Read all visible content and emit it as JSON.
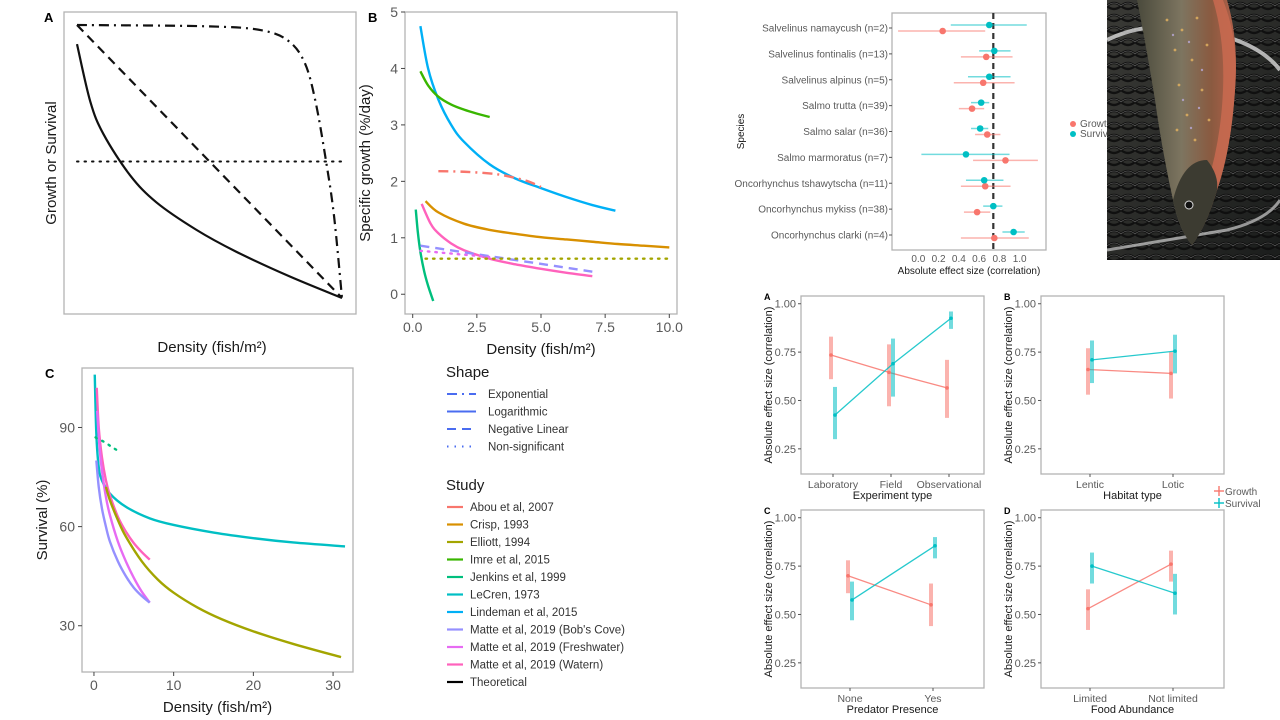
{
  "chart_data": [
    {
      "id": "A",
      "type": "line",
      "panel_label": "A",
      "title": "",
      "xlabel": "Density (fish/m²)",
      "ylabel": "Growth or Survival",
      "xlim": [
        0,
        1
      ],
      "ylim": [
        0,
        1
      ],
      "ticks_shown": false,
      "grid": false,
      "series": [
        {
          "name": "Logarithmic",
          "dash": "solid",
          "x": [
            0,
            0.05,
            0.1,
            0.2,
            0.3,
            0.45,
            0.6,
            0.8,
            1.0
          ],
          "y": [
            0.93,
            0.72,
            0.6,
            0.45,
            0.35,
            0.25,
            0.17,
            0.08,
            0.0
          ]
        },
        {
          "name": "Negative Linear",
          "dash": "dashed",
          "x": [
            0,
            1
          ],
          "y": [
            1.0,
            0.0
          ]
        },
        {
          "name": "Exponential",
          "dash": "dotdash",
          "x": [
            0,
            0.5,
            0.7,
            0.8,
            0.86,
            0.9,
            0.94,
            0.97,
            1.0
          ],
          "y": [
            1.0,
            0.995,
            0.98,
            0.94,
            0.86,
            0.72,
            0.5,
            0.3,
            0.0
          ]
        },
        {
          "name": "Non-significant",
          "dash": "dotted",
          "x": [
            0,
            1
          ],
          "y": [
            0.5,
            0.5
          ]
        }
      ]
    },
    {
      "id": "B",
      "type": "line",
      "panel_label": "B",
      "title": "",
      "xlabel": "Density (fish/m²)",
      "ylabel": "Specific growth (%/day)",
      "xlim": [
        -0.3,
        10.3
      ],
      "ylim": [
        -0.35,
        5
      ],
      "xticks": [
        "0.0",
        "2.5",
        "5.0",
        "7.5",
        "10.0"
      ],
      "xtick_values": [
        0,
        2.5,
        5,
        7.5,
        10
      ],
      "yticks": [
        "0",
        "1",
        "2",
        "3",
        "4",
        "5"
      ],
      "ytick_values": [
        0,
        1,
        2,
        3,
        4,
        5
      ],
      "grid": false,
      "series": [
        {
          "name": "Lindeman et al, 2015",
          "shape": "Logarithmic",
          "color": "#00b0f6",
          "x": [
            0.3,
            0.6,
            1.0,
            1.5,
            2.0,
            3.0,
            4.0,
            5.0,
            6.0,
            7.0,
            7.9
          ],
          "y": [
            4.75,
            4.0,
            3.45,
            3.0,
            2.7,
            2.3,
            2.05,
            1.88,
            1.72,
            1.58,
            1.48
          ]
        },
        {
          "name": "Imre et al, 2015",
          "shape": "Logarithmic",
          "color": "#39b600",
          "x": [
            0.3,
            0.6,
            1.0,
            1.5,
            2.0,
            2.5,
            3.0
          ],
          "y": [
            3.95,
            3.7,
            3.5,
            3.36,
            3.27,
            3.2,
            3.14
          ]
        },
        {
          "name": "Abou et al, 2007",
          "shape": "Exponential",
          "color": "#f8766d",
          "x": [
            1.0,
            2.0,
            3.0,
            3.5,
            4.0,
            4.5,
            5.0
          ],
          "y": [
            2.18,
            2.17,
            2.14,
            2.11,
            2.06,
            2.0,
            1.9
          ]
        },
        {
          "name": "Crisp, 1993",
          "shape": "Logarithmic",
          "color": "#d89000",
          "x": [
            0.5,
            1.0,
            2.0,
            3.0,
            4.0,
            5.0,
            6.0,
            7.0,
            8.0,
            9.0,
            10.0
          ],
          "y": [
            1.65,
            1.45,
            1.25,
            1.14,
            1.07,
            1.01,
            0.97,
            0.93,
            0.89,
            0.86,
            0.83
          ]
        },
        {
          "name": "Matte et al, 2019 (Watern)",
          "shape": "Logarithmic",
          "color": "#ff62bc",
          "x": [
            0.35,
            0.7,
            1.0,
            1.5,
            2.0,
            3.0,
            4.0,
            5.0,
            6.0,
            7.0
          ],
          "y": [
            1.6,
            1.25,
            1.08,
            0.9,
            0.78,
            0.63,
            0.53,
            0.45,
            0.38,
            0.32
          ]
        },
        {
          "name": "Jenkins et al, 1999",
          "shape": "Logarithmic",
          "color": "#00bf7d",
          "x": [
            0.12,
            0.2,
            0.3,
            0.45,
            0.6,
            0.8
          ],
          "y": [
            1.5,
            1.1,
            0.75,
            0.4,
            0.15,
            -0.12
          ]
        },
        {
          "name": "Matte et al, 2019 (Bob's Cove)",
          "shape": "Negative Linear",
          "color": "#9590ff",
          "x": [
            0.3,
            7.0
          ],
          "y": [
            0.86,
            0.4
          ]
        },
        {
          "name": "Matte et al, 2019 (Freshwater)",
          "shape": "Non-significant",
          "color": "#e76bf3",
          "x": [
            0.3,
            3.0
          ],
          "y": [
            0.77,
            0.66
          ]
        },
        {
          "name": "Elliott, 1994",
          "shape": "Non-significant",
          "color": "#a3a500",
          "x": [
            0.5,
            10.0
          ],
          "y": [
            0.63,
            0.63
          ]
        }
      ]
    },
    {
      "id": "C",
      "type": "line",
      "panel_label": "C",
      "title": "",
      "xlabel": "Density (fish/m²)",
      "ylabel": "Survival (%)",
      "xlim": [
        -1.5,
        32.5
      ],
      "ylim": [
        16,
        108
      ],
      "xticks": [
        "0",
        "10",
        "20",
        "30"
      ],
      "xtick_values": [
        0,
        10,
        20,
        30
      ],
      "yticks": [
        "30",
        "60",
        "90"
      ],
      "ytick_values": [
        30,
        60,
        90
      ],
      "grid": false,
      "series": [
        {
          "name": "LeCren, 1973",
          "shape": "Logarithmic",
          "color": "#00bfc4",
          "x": [
            0.1,
            0.3,
            0.6,
            1.0,
            2.0,
            4.0,
            7.0,
            10.0,
            15.0,
            20.0,
            25.0,
            31.5
          ],
          "y": [
            106,
            88,
            78,
            74,
            70,
            66,
            62.5,
            60.5,
            58.2,
            56.5,
            55.2,
            54
          ]
        },
        {
          "name": "Matte et al, 2019 (Watern)",
          "shape": "Logarithmic",
          "color": "#ff62bc",
          "x": [
            0.35,
            0.6,
            1.0,
            1.5,
            2.0,
            3.0,
            4.0,
            5.0,
            6.0,
            7.0
          ],
          "y": [
            102,
            90,
            81,
            74,
            69.5,
            63,
            58.5,
            55,
            52.3,
            50
          ]
        },
        {
          "name": "Matte et al, 2019 (Freshwater)",
          "shape": "Logarithmic",
          "color": "#e76bf3",
          "x": [
            0.4,
            0.7,
            1.0,
            1.5,
            2.0,
            3.0,
            4.0,
            5.0,
            6.0,
            7.0
          ],
          "y": [
            95,
            84,
            77,
            69,
            63.5,
            55.5,
            49.5,
            44.5,
            40.3,
            37
          ]
        },
        {
          "name": "Matte et al, 2019 (Bob's Cove)",
          "shape": "Logarithmic",
          "color": "#9590ff",
          "x": [
            0.3,
            0.6,
            1.0,
            1.5,
            2.0,
            3.0,
            4.0,
            5.0,
            6.0,
            7.0
          ],
          "y": [
            80,
            72,
            65.5,
            60,
            55.5,
            49.5,
            45,
            41.5,
            39,
            37
          ]
        },
        {
          "name": "Elliott, 1994",
          "shape": "Logarithmic",
          "color": "#a3a500",
          "x": [
            1.5,
            2.0,
            3.0,
            4.0,
            6.0,
            8.0,
            10.0,
            13.0,
            16.0,
            20.0,
            25.0,
            31.0
          ],
          "y": [
            72,
            68,
            62,
            57,
            49.5,
            44,
            40,
            35.5,
            32,
            28.3,
            24.5,
            20.5
          ]
        },
        {
          "name": "Jenkins et al, 1999",
          "shape": "Non-significant",
          "color": "#00bf7d",
          "x": [
            0.2,
            0.5,
            1.0,
            1.5,
            2.0,
            2.5,
            3.0
          ],
          "y": [
            87,
            86.5,
            86,
            85.3,
            84.5,
            83.7,
            83
          ]
        }
      ]
    },
    {
      "id": "species-forest",
      "type": "scatter",
      "title": "",
      "xlabel": "Absolute effect size (correlation)",
      "ylabel": "Species",
      "xlim": [
        -0.26,
        1.26
      ],
      "xticks": [
        "0.0",
        "0.2",
        "0.4",
        "0.6",
        "0.8",
        "1.0"
      ],
      "xtick_values": [
        0,
        0.2,
        0.4,
        0.6,
        0.8,
        1.0
      ],
      "reference_line": 0.74,
      "legend_position": "right",
      "categories": [
        "Salvelinus namaycush (n=2)",
        "Salvelinus fontinalis (n=13)",
        "Salvelinus alpinus (n=5)",
        "Salmo trutta (n=39)",
        "Salmo salar (n=36)",
        "Salmo marmoratus (n=7)",
        "Oncorhynchus tshawytscha (n=11)",
        "Oncorhynchus mykiss (n=38)",
        "Oncorhynchus clarki (n=4)"
      ],
      "series": [
        {
          "name": "Growth",
          "color": "#f8766d",
          "values": [
            0.24,
            0.67,
            0.64,
            0.53,
            0.68,
            0.86,
            0.66,
            0.58,
            0.75
          ],
          "lower": [
            -0.2,
            0.42,
            0.35,
            0.4,
            0.56,
            0.54,
            0.42,
            0.45,
            0.42
          ],
          "upper": [
            0.66,
            0.93,
            0.95,
            0.65,
            0.81,
            1.18,
            0.91,
            0.71,
            1.09
          ]
        },
        {
          "name": "Survival",
          "color": "#00bfc4",
          "values": [
            0.7,
            0.75,
            0.7,
            0.62,
            0.61,
            0.47,
            0.65,
            0.74,
            0.94
          ],
          "lower": [
            0.32,
            0.6,
            0.49,
            0.52,
            0.52,
            0.03,
            0.47,
            0.64,
            0.83
          ],
          "upper": [
            1.07,
            0.91,
            0.91,
            0.7,
            0.69,
            0.9,
            0.84,
            0.83,
            1.05
          ]
        }
      ]
    },
    {
      "id": "moderator-A",
      "type": "line",
      "panel_label": "A",
      "xlabel": "Experiment type",
      "ylabel": "Absolute effect size (correlation)",
      "ylim": [
        0.12,
        1.04
      ],
      "yticks": [
        "0.25",
        "0.50",
        "0.75",
        "1.00"
      ],
      "ytick_values": [
        0.25,
        0.5,
        0.75,
        1.0
      ],
      "categories": [
        "Laboratory",
        "Field",
        "Observational"
      ],
      "series": [
        {
          "name": "Growth",
          "color": "#f8766d",
          "values": [
            0.735,
            0.645,
            0.565
          ],
          "lower": [
            0.61,
            0.47,
            0.41
          ],
          "upper": [
            0.83,
            0.79,
            0.71
          ]
        },
        {
          "name": "Survival",
          "color": "#00bfc4",
          "values": [
            0.425,
            0.69,
            0.925
          ],
          "lower": [
            0.3,
            0.52,
            0.87
          ],
          "upper": [
            0.57,
            0.82,
            0.96
          ]
        }
      ]
    },
    {
      "id": "moderator-B",
      "type": "line",
      "panel_label": "B",
      "xlabel": "Habitat type",
      "ylabel": "Absolute effect size (correlation)",
      "ylim": [
        0.12,
        1.04
      ],
      "yticks": [
        "0.25",
        "0.50",
        "0.75",
        "1.00"
      ],
      "ytick_values": [
        0.25,
        0.5,
        0.75,
        1.0
      ],
      "categories": [
        "Lentic",
        "Lotic"
      ],
      "series": [
        {
          "name": "Growth",
          "color": "#f8766d",
          "values": [
            0.66,
            0.64
          ],
          "lower": [
            0.53,
            0.51
          ],
          "upper": [
            0.77,
            0.75
          ]
        },
        {
          "name": "Survival",
          "color": "#00bfc4",
          "values": [
            0.71,
            0.755
          ],
          "lower": [
            0.59,
            0.64
          ],
          "upper": [
            0.81,
            0.84
          ]
        }
      ]
    },
    {
      "id": "moderator-C",
      "type": "line",
      "panel_label": "C",
      "xlabel": "Predator Presence",
      "ylabel": "Absolute effect size (correlation)",
      "ylim": [
        0.12,
        1.04
      ],
      "yticks": [
        "0.25",
        "0.50",
        "0.75",
        "1.00"
      ],
      "ytick_values": [
        0.25,
        0.5,
        0.75,
        1.0
      ],
      "categories": [
        "None",
        "Yes"
      ],
      "series": [
        {
          "name": "Growth",
          "color": "#f8766d",
          "values": [
            0.7,
            0.55
          ],
          "lower": [
            0.61,
            0.44
          ],
          "upper": [
            0.78,
            0.66
          ]
        },
        {
          "name": "Survival",
          "color": "#00bfc4",
          "values": [
            0.575,
            0.855
          ],
          "lower": [
            0.47,
            0.79
          ],
          "upper": [
            0.67,
            0.9
          ]
        }
      ]
    },
    {
      "id": "moderator-D",
      "type": "line",
      "panel_label": "D",
      "xlabel": "Food Abundance",
      "ylabel": "Absolute effect size (correlation)",
      "ylim": [
        0.12,
        1.04
      ],
      "yticks": [
        "0.25",
        "0.50",
        "0.75",
        "1.00"
      ],
      "ytick_values": [
        0.25,
        0.5,
        0.75,
        1.0
      ],
      "categories": [
        "Limited",
        "Not limited"
      ],
      "series": [
        {
          "name": "Growth",
          "color": "#f8766d",
          "values": [
            0.53,
            0.76
          ],
          "lower": [
            0.42,
            0.67
          ],
          "upper": [
            0.63,
            0.83
          ]
        },
        {
          "name": "Survival",
          "color": "#00bfc4",
          "values": [
            0.75,
            0.61
          ],
          "lower": [
            0.66,
            0.5
          ],
          "upper": [
            0.82,
            0.71
          ]
        }
      ]
    }
  ],
  "legend": {
    "shape_title": "Shape",
    "shapes": [
      {
        "label": "Exponential",
        "dash": "dotdash"
      },
      {
        "label": "Logarithmic",
        "dash": "solid"
      },
      {
        "label": "Negative Linear",
        "dash": "dashed"
      },
      {
        "label": "Non-significant",
        "dash": "dotted"
      }
    ],
    "shape_color": "#4a6cf0",
    "study_title": "Study",
    "studies": [
      {
        "label": "Abou et al, 2007",
        "color": "#f8766d"
      },
      {
        "label": "Crisp, 1993",
        "color": "#d89000"
      },
      {
        "label": "Elliott, 1994",
        "color": "#a3a500"
      },
      {
        "label": "Imre et al, 2015",
        "color": "#39b600"
      },
      {
        "label": "Jenkins et al, 1999",
        "color": "#00bf7d"
      },
      {
        "label": "LeCren, 1973",
        "color": "#00bfc4"
      },
      {
        "label": "Lindeman et al, 2015",
        "color": "#00b0f6"
      },
      {
        "label": "Matte et al, 2019 (Bob's Cove)",
        "color": "#9590ff"
      },
      {
        "label": "Matte et al, 2019 (Freshwater)",
        "color": "#e76bf3"
      },
      {
        "label": "Matte et al, 2019 (Watern)",
        "color": "#ff62bc"
      },
      {
        "label": "Theoretical",
        "color": "#000000"
      }
    ],
    "forest_legend": [
      {
        "label": "Growth",
        "color": "#f8766d"
      },
      {
        "label": "Survival",
        "color": "#00bfc4"
      }
    ],
    "moderator_legend": [
      {
        "label": "Growth",
        "color": "#f8766d"
      },
      {
        "label": "Survival",
        "color": "#00bfc4"
      }
    ]
  },
  "photo": {
    "description": "brook trout in landing net"
  }
}
